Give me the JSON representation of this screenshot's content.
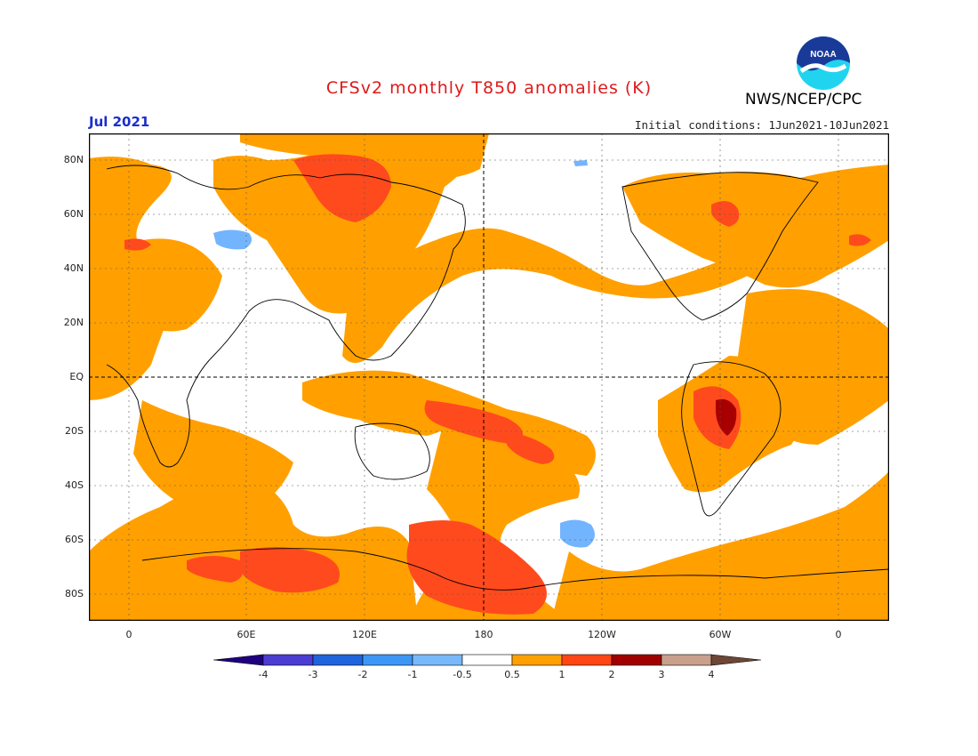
{
  "title": "CFSv2 monthly T850 anomalies (K)",
  "agency": "NWS/NCEP/CPC",
  "logo_text": "NOAA",
  "month": "Jul 2021",
  "initial_conditions": "Initial conditions: 1Jun2021-10Jun2021",
  "colors": {
    "title": "#dd1a1a",
    "month": "#1a2ecc",
    "level_1": "#ffa000",
    "level_2": "#ff4a1e",
    "level_3": "#a80000",
    "neg_1": "#73b4ff",
    "map_border": "#000000"
  },
  "lat_labels": [
    "80N",
    "60N",
    "40N",
    "20N",
    "EQ",
    "20S",
    "40S",
    "60S",
    "80S"
  ],
  "lon_labels": [
    "0",
    "60E",
    "120E",
    "180",
    "120W",
    "60W",
    "0"
  ],
  "colorbar": {
    "bins": [
      "#1e0080",
      "#4b3cd2",
      "#1e64dc",
      "#3c96f5",
      "#78b9fa",
      "#ffffff",
      "#ffa000",
      "#ff4614",
      "#a00000",
      "#c8a08c",
      "#6e4637"
    ],
    "labels": [
      "-4",
      "-3",
      "-2",
      "-1",
      "-0.5",
      "0.5",
      "1",
      "2",
      "3",
      "4"
    ]
  }
}
